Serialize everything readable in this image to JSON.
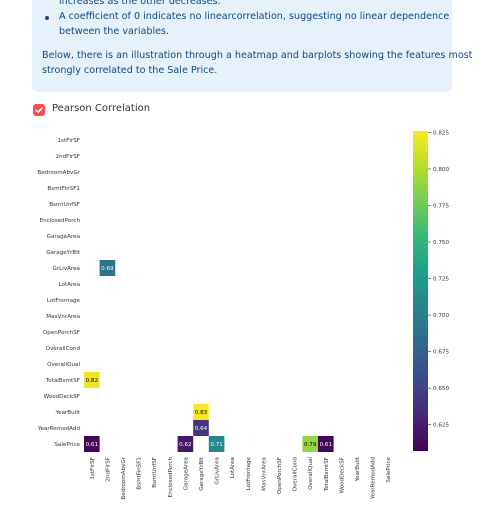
{
  "info_box": {
    "bullets": [
      [
        "increases as the other decreases."
      ],
      [
        "A coefficient of 0 indicates no linearcorrelation, suggesting no linear dependence",
        "between the variables."
      ]
    ],
    "paragraph": [
      "Below, there is an illustration through a heatmap and barplots showing the features most",
      "strongly correlated to the Sale Price."
    ]
  },
  "checkbox": {
    "label": "Pearson Correlation",
    "checked": true
  },
  "chart_data": {
    "type": "heatmap",
    "colormap": "viridis",
    "rows": [
      "1stFlrSF",
      "2ndFlrSF",
      "BedroomAbvGr",
      "BsmtFinSF1",
      "BsmtUnfSF",
      "EnclosedPorch",
      "GarageArea",
      "GarageYrBlt",
      "GrLivArea",
      "LotArea",
      "LotFrontage",
      "MasVnrArea",
      "OpenPorchSF",
      "OverallCond",
      "OverallQual",
      "TotalBsmtSF",
      "WoodDeckSF",
      "YearBuilt",
      "YearRemodAdd",
      "SalePrice"
    ],
    "columns": [
      "1stFlrSF",
      "2ndFlrSF",
      "BedroomAbvGr",
      "BsmtFinSF1",
      "BsmtUnfSF",
      "EnclosedPorch",
      "GarageArea",
      "GarageYrBlt",
      "GrLivArea",
      "LotArea",
      "LotFrontage",
      "MasVnrArea",
      "OpenPorchSF",
      "OverallCond",
      "OverallQual",
      "TotalBsmtSF",
      "WoodDeckSF",
      "YearBuilt",
      "YearRemodAdd",
      "SalePrice"
    ],
    "values": [
      [
        null,
        null,
        null,
        null,
        null,
        null,
        null,
        null,
        null,
        null,
        null,
        null,
        null,
        null,
        null,
        null,
        null,
        null,
        null,
        null
      ],
      [
        null,
        null,
        null,
        null,
        null,
        null,
        null,
        null,
        null,
        null,
        null,
        null,
        null,
        null,
        null,
        null,
        null,
        null,
        null,
        null
      ],
      [
        null,
        null,
        null,
        null,
        null,
        null,
        null,
        null,
        null,
        null,
        null,
        null,
        null,
        null,
        null,
        null,
        null,
        null,
        null,
        null
      ],
      [
        null,
        null,
        null,
        null,
        null,
        null,
        null,
        null,
        null,
        null,
        null,
        null,
        null,
        null,
        null,
        null,
        null,
        null,
        null,
        null
      ],
      [
        null,
        null,
        null,
        null,
        null,
        null,
        null,
        null,
        null,
        null,
        null,
        null,
        null,
        null,
        null,
        null,
        null,
        null,
        null,
        null
      ],
      [
        null,
        null,
        null,
        null,
        null,
        null,
        null,
        null,
        null,
        null,
        null,
        null,
        null,
        null,
        null,
        null,
        null,
        null,
        null,
        null
      ],
      [
        null,
        null,
        null,
        null,
        null,
        null,
        null,
        null,
        null,
        null,
        null,
        null,
        null,
        null,
        null,
        null,
        null,
        null,
        null,
        null
      ],
      [
        null,
        null,
        null,
        null,
        null,
        null,
        null,
        null,
        null,
        null,
        null,
        null,
        null,
        null,
        null,
        null,
        null,
        null,
        null,
        null
      ],
      [
        null,
        0.69,
        null,
        null,
        null,
        null,
        null,
        null,
        null,
        null,
        null,
        null,
        null,
        null,
        null,
        null,
        null,
        null,
        null,
        null
      ],
      [
        null,
        null,
        null,
        null,
        null,
        null,
        null,
        null,
        null,
        null,
        null,
        null,
        null,
        null,
        null,
        null,
        null,
        null,
        null,
        null
      ],
      [
        null,
        null,
        null,
        null,
        null,
        null,
        null,
        null,
        null,
        null,
        null,
        null,
        null,
        null,
        null,
        null,
        null,
        null,
        null,
        null
      ],
      [
        null,
        null,
        null,
        null,
        null,
        null,
        null,
        null,
        null,
        null,
        null,
        null,
        null,
        null,
        null,
        null,
        null,
        null,
        null,
        null
      ],
      [
        null,
        null,
        null,
        null,
        null,
        null,
        null,
        null,
        null,
        null,
        null,
        null,
        null,
        null,
        null,
        null,
        null,
        null,
        null,
        null
      ],
      [
        null,
        null,
        null,
        null,
        null,
        null,
        null,
        null,
        null,
        null,
        null,
        null,
        null,
        null,
        null,
        null,
        null,
        null,
        null,
        null
      ],
      [
        null,
        null,
        null,
        null,
        null,
        null,
        null,
        null,
        null,
        null,
        null,
        null,
        null,
        null,
        null,
        null,
        null,
        null,
        null,
        null
      ],
      [
        0.82,
        null,
        null,
        null,
        null,
        null,
        null,
        null,
        null,
        null,
        null,
        null,
        null,
        null,
        null,
        null,
        null,
        null,
        null,
        null
      ],
      [
        null,
        null,
        null,
        null,
        null,
        null,
        null,
        null,
        null,
        null,
        null,
        null,
        null,
        null,
        null,
        null,
        null,
        null,
        null,
        null
      ],
      [
        null,
        null,
        null,
        null,
        null,
        null,
        null,
        0.83,
        null,
        null,
        null,
        null,
        null,
        null,
        null,
        null,
        null,
        null,
        null,
        null
      ],
      [
        null,
        null,
        null,
        null,
        null,
        null,
        null,
        0.64,
        null,
        null,
        null,
        null,
        null,
        null,
        null,
        null,
        null,
        null,
        null,
        null
      ],
      [
        0.61,
        null,
        null,
        null,
        null,
        null,
        0.62,
        null,
        0.71,
        null,
        null,
        null,
        null,
        null,
        0.79,
        0.61,
        null,
        null,
        null,
        null
      ]
    ],
    "clim": [
      0.607,
      0.826
    ],
    "cticks": [
      0.625,
      {
        "value": 0.65,
        "label": "0.650"
      },
      0.675,
      {
        "value": 0.7,
        "label": "0.700"
      },
      0.725,
      {
        "value": 0.75,
        "label": "0.750"
      },
      0.775,
      {
        "value": 0.8,
        "label": "0.800"
      },
      0.825
    ]
  }
}
